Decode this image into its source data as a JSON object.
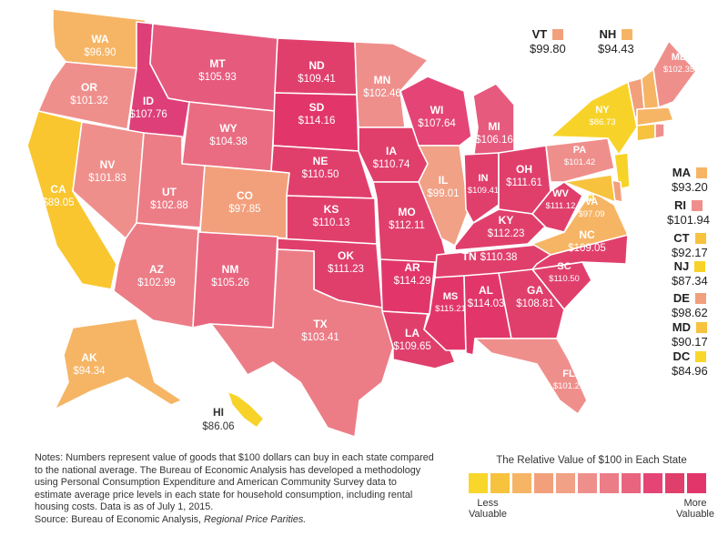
{
  "states": [
    {
      "abbr": "WA",
      "value": "$96.90",
      "color": "#f6b565"
    },
    {
      "abbr": "OR",
      "value": "$101.32",
      "color": "#ef8f8c"
    },
    {
      "abbr": "CA",
      "value": "$89.05",
      "color": "#f9c630"
    },
    {
      "abbr": "ID",
      "value": "$107.76",
      "color": "#de3f78"
    },
    {
      "abbr": "NV",
      "value": "$101.83",
      "color": "#ef8f8c"
    },
    {
      "abbr": "MT",
      "value": "$105.93",
      "color": "#e65a7e"
    },
    {
      "abbr": "WY",
      "value": "$104.38",
      "color": "#ea6c82"
    },
    {
      "abbr": "UT",
      "value": "$102.88",
      "color": "#ec7d87"
    },
    {
      "abbr": "AZ",
      "value": "$102.99",
      "color": "#ec7d87"
    },
    {
      "abbr": "CO",
      "value": "$97.85",
      "color": "#f2a07c"
    },
    {
      "abbr": "NM",
      "value": "$105.26",
      "color": "#e9657f"
    },
    {
      "abbr": "ND",
      "value": "$109.41",
      "color": "#e03f6c"
    },
    {
      "abbr": "SD",
      "value": "$114.16",
      "color": "#e2366b"
    },
    {
      "abbr": "NE",
      "value": "$110.50",
      "color": "#e03f6c"
    },
    {
      "abbr": "KS",
      "value": "$110.13",
      "color": "#e03f6c"
    },
    {
      "abbr": "OK",
      "value": "$111.23",
      "color": "#e03f6c"
    },
    {
      "abbr": "TX",
      "value": "$103.41",
      "color": "#ec7d87"
    },
    {
      "abbr": "MN",
      "value": "$102.46",
      "color": "#ef8f8c"
    },
    {
      "abbr": "IA",
      "value": "$110.74",
      "color": "#e03f6c"
    },
    {
      "abbr": "MO",
      "value": "$112.11",
      "color": "#e03f6c"
    },
    {
      "abbr": "AR",
      "value": "$114.29",
      "color": "#e2366b"
    },
    {
      "abbr": "LA",
      "value": "$109.65",
      "color": "#e03f6c"
    },
    {
      "abbr": "WI",
      "value": "$107.64",
      "color": "#e44576"
    },
    {
      "abbr": "IL",
      "value": "$99.01",
      "color": "#f0a186"
    },
    {
      "abbr": "MI",
      "value": "$106.16",
      "color": "#e65a7e"
    },
    {
      "abbr": "IN",
      "value": "$109.41",
      "color": "#e03f6c"
    },
    {
      "abbr": "OH",
      "value": "$111.61",
      "color": "#e03f6c"
    },
    {
      "abbr": "KY",
      "value": "$112.23",
      "color": "#e03f6c"
    },
    {
      "abbr": "TN",
      "value": "$110.38",
      "color": "#e03f6c"
    },
    {
      "abbr": "MS",
      "value": "$115.21",
      "color": "#e2366b"
    },
    {
      "abbr": "AL",
      "value": "$114.03",
      "color": "#e2366b"
    },
    {
      "abbr": "GA",
      "value": "$108.81",
      "color": "#e03f6c"
    },
    {
      "abbr": "FL",
      "value": "$101.21",
      "color": "#ef8f8c"
    },
    {
      "abbr": "SC",
      "value": "$110.50",
      "color": "#e03f6c"
    },
    {
      "abbr": "NC",
      "value": "$109.05",
      "color": "#e03f6c"
    },
    {
      "abbr": "VA",
      "value": "$97.09",
      "color": "#f6b565"
    },
    {
      "abbr": "WV",
      "value": "$111.12",
      "color": "#e03f6c"
    },
    {
      "abbr": "PA",
      "value": "$101.42",
      "color": "#ef8f8c"
    },
    {
      "abbr": "NY",
      "value": "$86.73",
      "color": "#f7d32a"
    },
    {
      "abbr": "ME",
      "value": "$102.35",
      "color": "#ef8f8c"
    },
    {
      "abbr": "AK",
      "value": "$94.34",
      "color": "#f6b565"
    },
    {
      "abbr": "HI",
      "value": "$86.06",
      "color": "#f7d32a"
    }
  ],
  "small_states": [
    {
      "abbr": "VT",
      "value": "$99.80",
      "color": "#f2a07c"
    },
    {
      "abbr": "NH",
      "value": "$94.43",
      "color": "#f6b565"
    },
    {
      "abbr": "MA",
      "value": "$93.20",
      "color": "#f6b565"
    },
    {
      "abbr": "RI",
      "value": "$101.94",
      "color": "#ef8f8c"
    },
    {
      "abbr": "CT",
      "value": "$92.17",
      "color": "#f7c23e"
    },
    {
      "abbr": "NJ",
      "value": "$87.34",
      "color": "#f7d32a"
    },
    {
      "abbr": "DE",
      "value": "$98.62",
      "color": "#f2a07c"
    },
    {
      "abbr": "MD",
      "value": "$90.17",
      "color": "#f7c23e"
    },
    {
      "abbr": "DC",
      "value": "$84.96",
      "color": "#f9d62a"
    }
  ],
  "notes": {
    "text": "Notes: Numbers represent value of goods that $100 dollars can buy in each state compared to the national average. The Bureau of Economic Analysis has developed a methodology using Personal Consumption Expenditure and American Community Survey data to estimate average price levels in each state for household consumption, including rental housing costs. Data is as of July 1, 2015.",
    "source_prefix": "Source: Bureau of Economic Analysis, ",
    "source_title": "Regional Price Parities."
  },
  "legend": {
    "title": "The Relative Value of $100 in Each State",
    "colors": [
      "#f9d62a",
      "#f7c23e",
      "#f6b565",
      "#f2a07c",
      "#f0a186",
      "#ef8f8c",
      "#ec7d87",
      "#e9657f",
      "#e44576",
      "#e03f6c",
      "#e2366b"
    ],
    "low_label_1": "Less",
    "low_label_2": "Valuable",
    "high_label_1": "More",
    "high_label_2": "Valuable"
  }
}
